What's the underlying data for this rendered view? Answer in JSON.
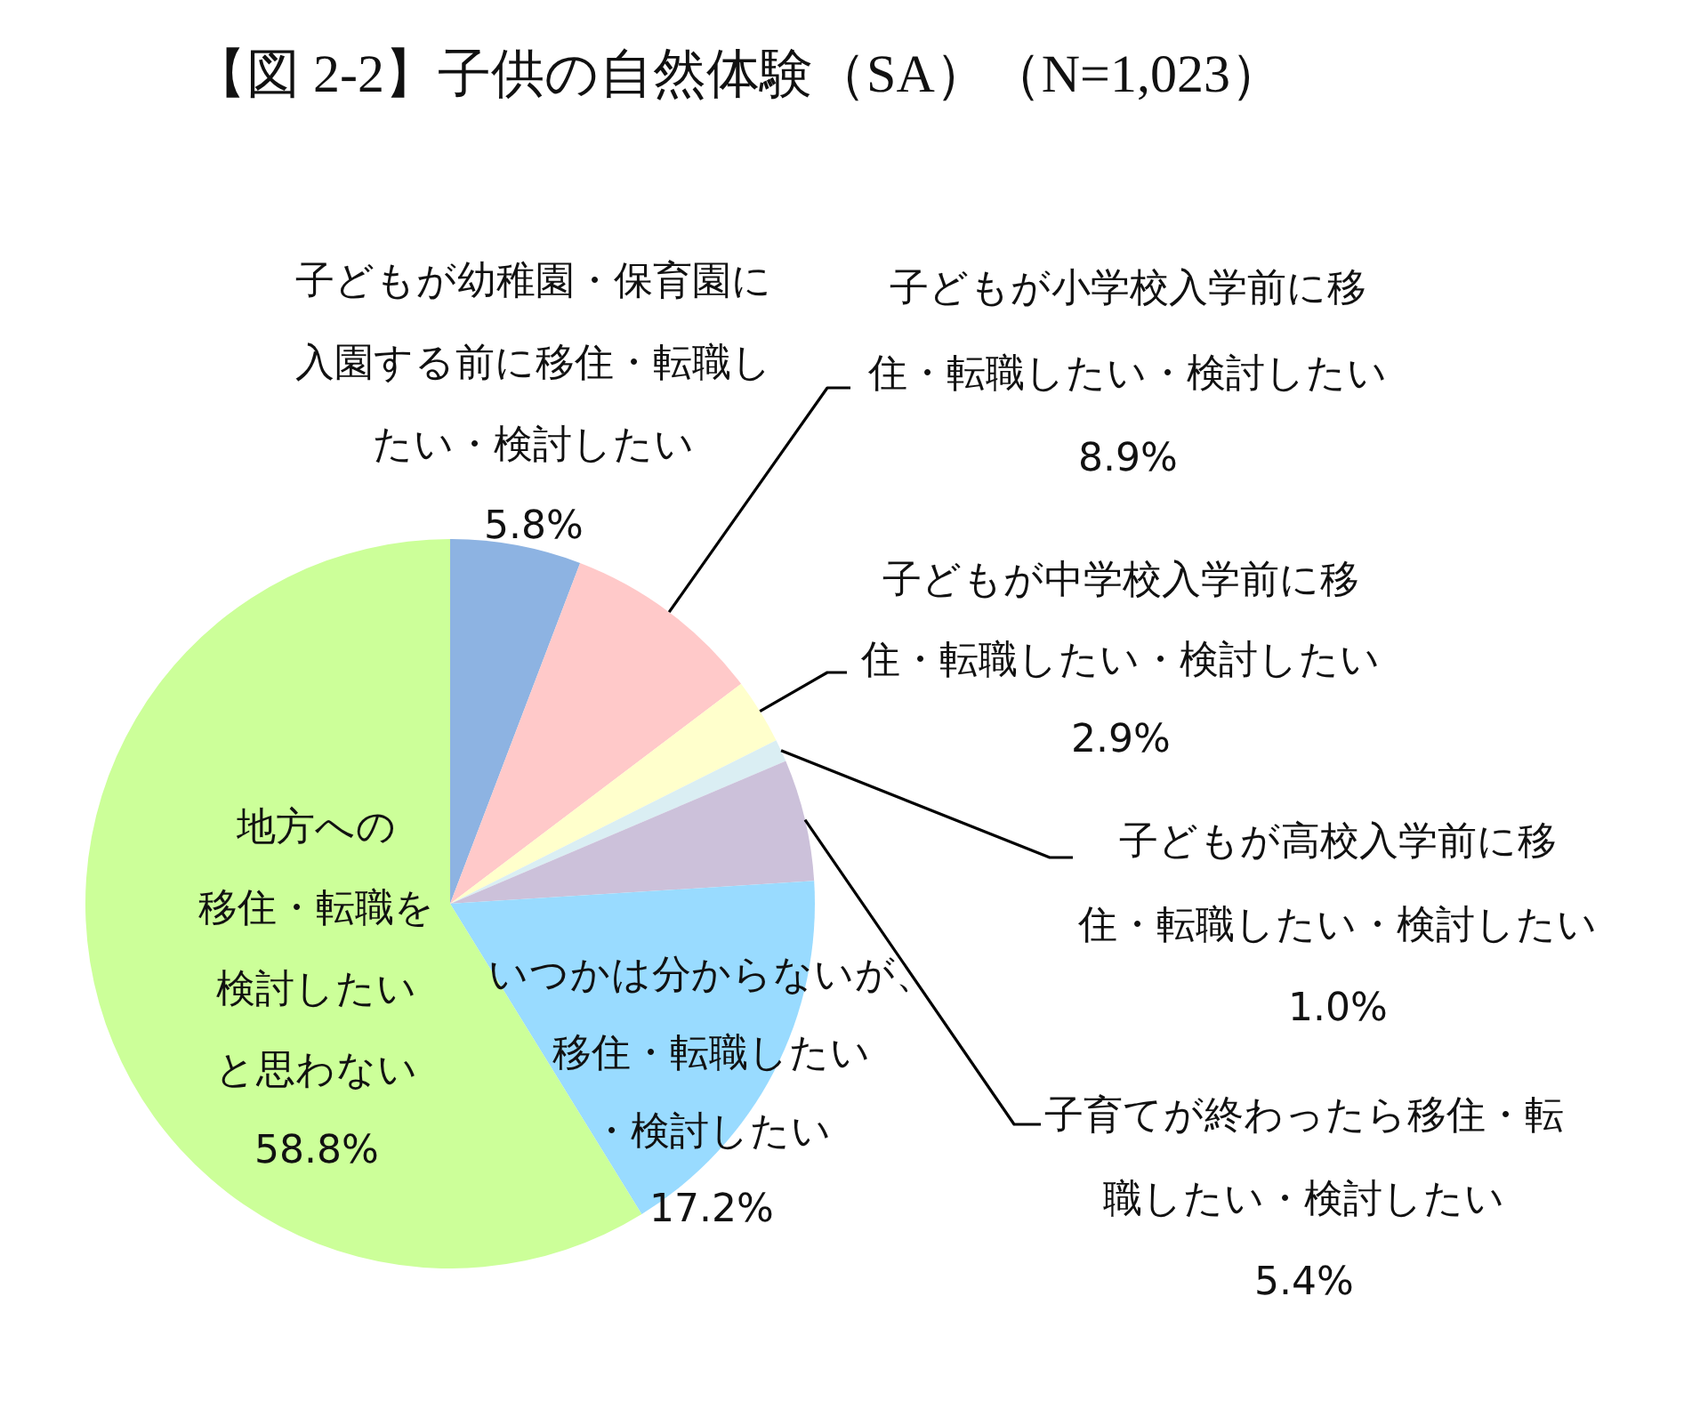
{
  "chart_data": {
    "type": "pie",
    "title": "【図 2-2】子供の自然体験（SA）（N=1,023）",
    "categories": [
      "子どもが幼稚園・保育園に入園する前に移住・転職したい・検討したい",
      "子どもが小学校入学前に移住・転職したい・検討したい",
      "子どもが中学校入学前に移住・転職したい・検討したい",
      "子どもが高校入学前に移住・転職したい・検討したい",
      "子育てが終わったら移住・転職したい・検討したい",
      "いつかは分からないが、移住・転職したい・検討したい",
      "地方への移住・転職を検討したいと思わない"
    ],
    "values": [
      5.8,
      8.9,
      2.9,
      1.0,
      5.4,
      17.2,
      58.8
    ],
    "colors": [
      "#8db3e2",
      "#ffc9c9",
      "#ffffcc",
      "#daeef3",
      "#ccc1da",
      "#99dbff",
      "#ccff99"
    ],
    "value_labels": [
      "5.8%",
      "8.9%",
      "2.9%",
      "1.0%",
      "5.4%",
      "17.2%",
      "58.8%"
    ]
  }
}
